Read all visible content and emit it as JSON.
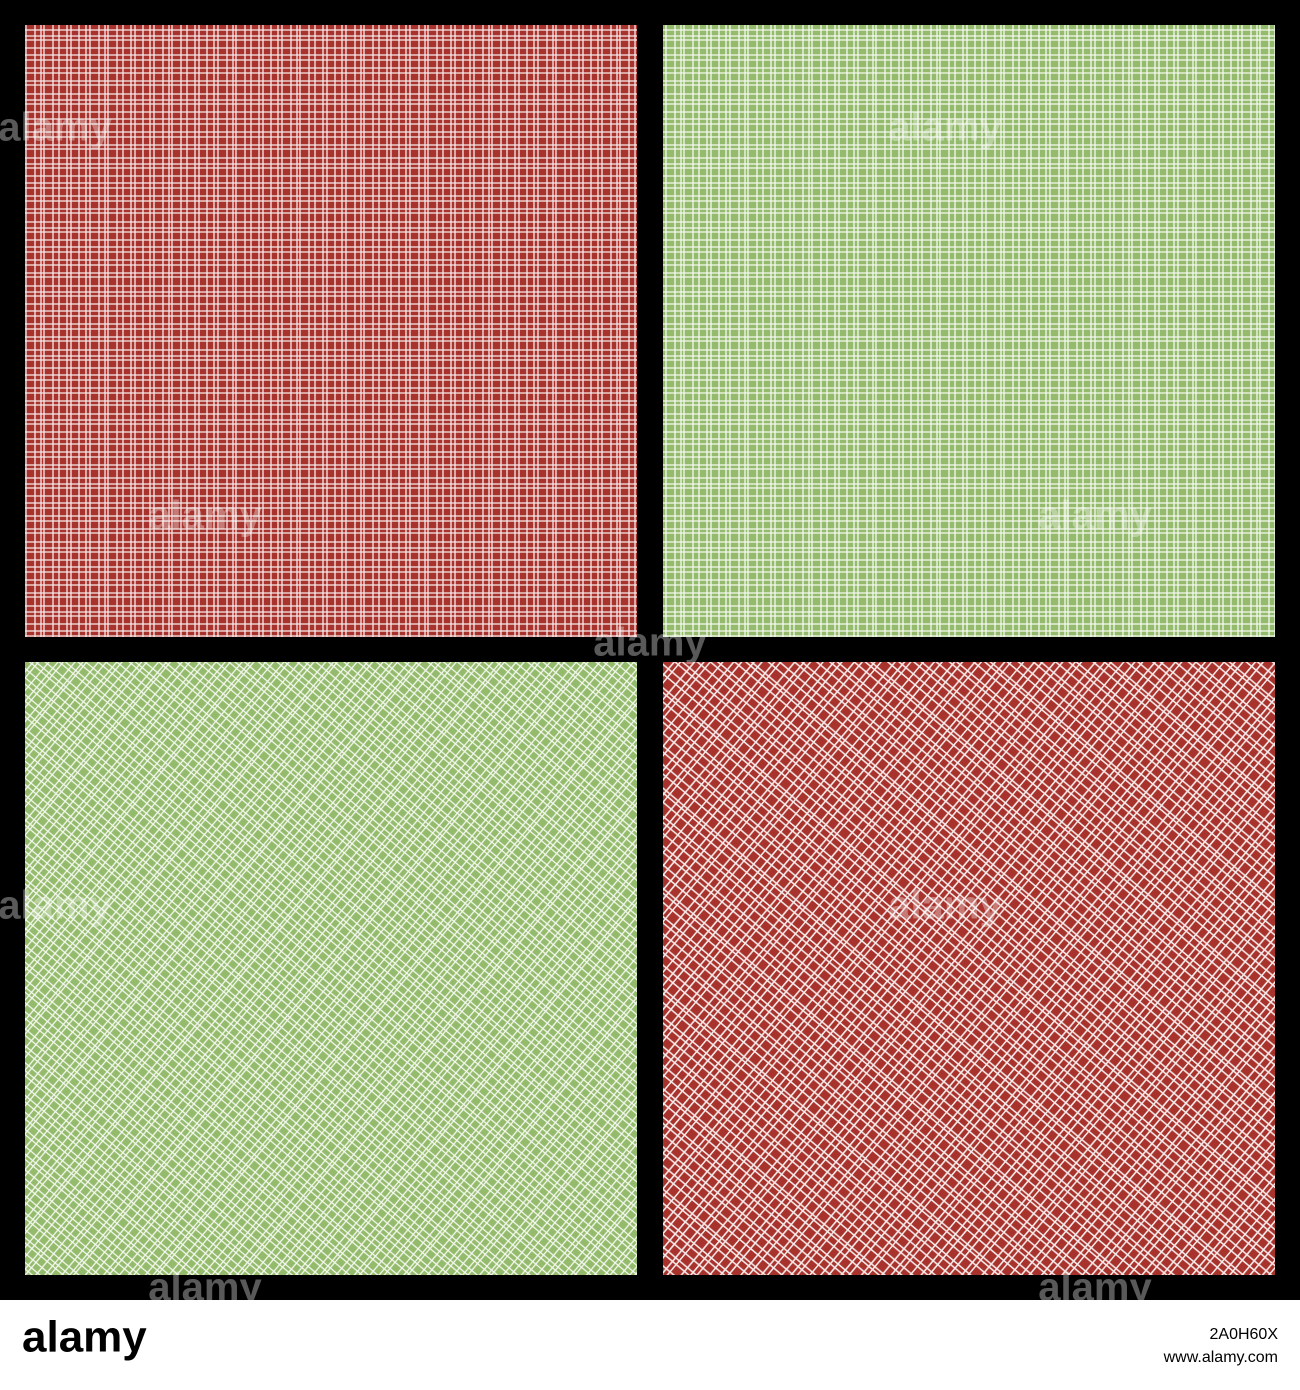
{
  "footer": {
    "logo": "alamy",
    "image_id": "2A0H60X",
    "url": "www.alamy.com"
  }
}
